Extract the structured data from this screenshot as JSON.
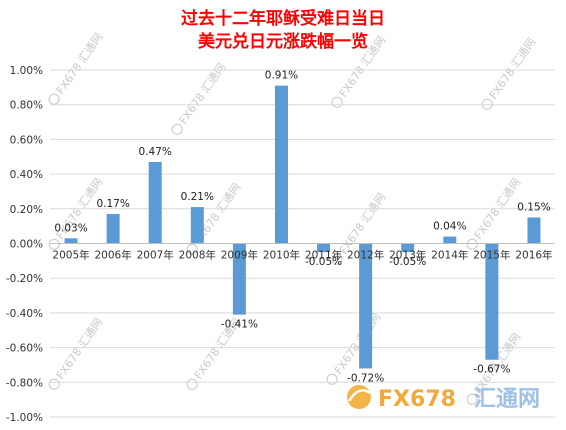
{
  "chart_data": {
    "type": "bar",
    "title": [
      "过去十二年耶稣受难日当日",
      "美元兑日元涨跌幅一览"
    ],
    "categories": [
      "2005年",
      "2006年",
      "2007年",
      "2008年",
      "2009年",
      "2010年",
      "2011年",
      "2012年",
      "2013年",
      "2014年",
      "2015年",
      "2016年"
    ],
    "values": [
      0.03,
      0.17,
      0.47,
      0.21,
      -0.41,
      0.91,
      -0.05,
      -0.72,
      -0.05,
      0.04,
      -0.67,
      0.15
    ],
    "data_labels": [
      "0.03%",
      "0.17%",
      "0.47%",
      "0.21%",
      "-0.41%",
      "0.91%",
      "-0.05%",
      "-0.72%",
      "-0.05%",
      "0.04%",
      "-0.67%",
      "0.15%"
    ],
    "yticks": [
      "1.00%",
      "0.80%",
      "0.60%",
      "0.40%",
      "0.20%",
      "0.00%",
      "-0.20%",
      "-0.40%",
      "-0.60%",
      "-0.80%",
      "-1.00%"
    ],
    "ylim": [
      -1.0,
      1.0
    ],
    "grid": true,
    "legend": false,
    "bar_color": "#5b9bd5",
    "title_color": "#ff0000"
  },
  "watermark": {
    "text": "FX678 汇通网",
    "logo_fx": "FX678",
    "logo_cn": "汇通网"
  }
}
